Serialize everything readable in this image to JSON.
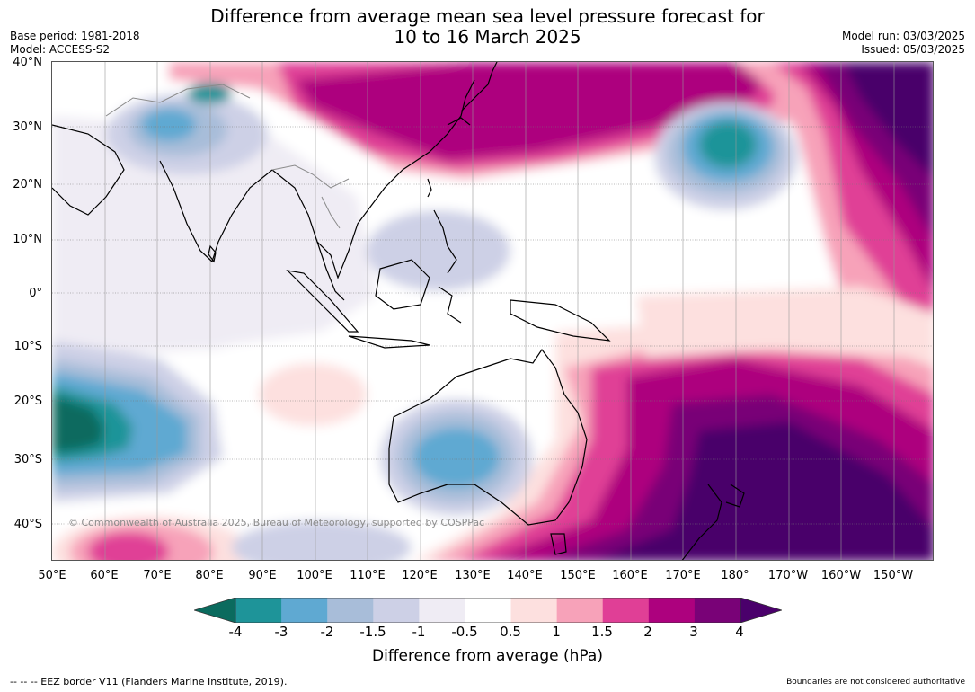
{
  "title": {
    "line1": "Difference from average mean sea level pressure forecast for",
    "line2": "10 to 16 March 2025"
  },
  "meta_left": [
    "Base period: 1981-2018",
    "Model: ACCESS-S2"
  ],
  "meta_right": [
    "Model run: 03/03/2025",
    "Issued: 05/03/2025"
  ],
  "map": {
    "lat_labels": [
      "40°N",
      "30°N",
      "20°N",
      "10°N",
      "0°",
      "10°S",
      "20°S",
      "30°S",
      "40°S"
    ],
    "lon_labels": [
      "50°E",
      "60°E",
      "70°E",
      "80°E",
      "90°E",
      "100°E",
      "110°E",
      "120°E",
      "130°E",
      "140°E",
      "150°E",
      "160°E",
      "170°E",
      "180°",
      "170°W",
      "160°W",
      "150°W"
    ],
    "copyright": "© Commonwealth of Australia 2025, Bureau of Meteorology, supported by COSPPac"
  },
  "legend": {
    "ticks": [
      "-4",
      "-3",
      "-2",
      "-1.5",
      "-1",
      "-0.5",
      "0.5",
      "1",
      "1.5",
      "2",
      "3",
      "4"
    ],
    "colors": [
      "#0b6b5e",
      "#1e9499",
      "#5fa9d2",
      "#a8bdd9",
      "#cdd0e6",
      "#efecf4",
      "#ffffff",
      "#fde0df",
      "#f7a2b9",
      "#e03f96",
      "#ad017e",
      "#790277",
      "#4a006b"
    ],
    "label": "Difference from average (hPa)"
  },
  "footer": {
    "left": "--  --  -- EEZ border V11 (Flanders Marine Institute, 2019).",
    "right": "Boundaries are not considered authoritative"
  }
}
